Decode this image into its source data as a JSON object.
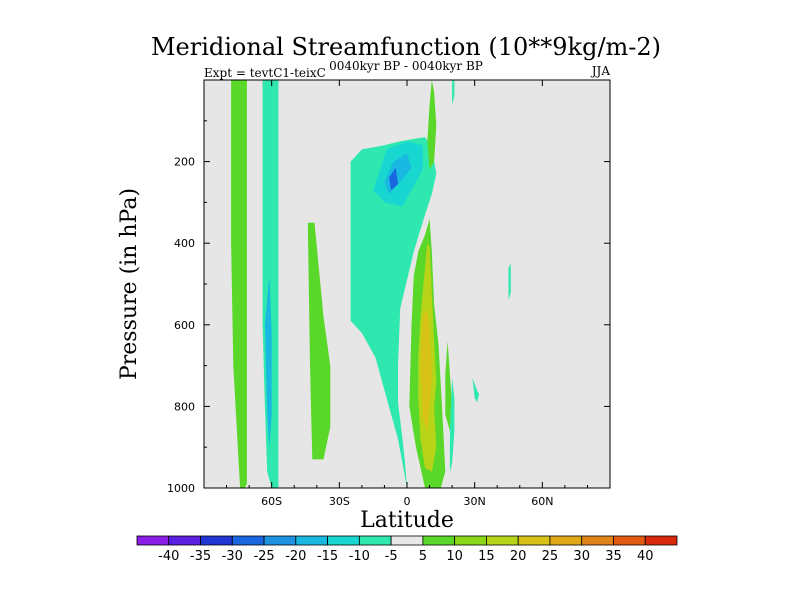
{
  "chart_data": {
    "type": "heatmap",
    "title": "Meridional Streamfunction (10**9kg/m-2)",
    "left_label": "Expt = tevtC1-teixC",
    "center_label": "0040kyr BP - 0040kyr BP",
    "right_label": "JJA",
    "xlabel": "Latitude",
    "ylabel": "Pressure (in hPa)",
    "xlim": [
      -90,
      90
    ],
    "ylim": [
      1000,
      0
    ],
    "x_ticks": [
      {
        "value": -60,
        "label": "60S"
      },
      {
        "value": -30,
        "label": "30S"
      },
      {
        "value": 0,
        "label": "0"
      },
      {
        "value": 30,
        "label": "30N"
      },
      {
        "value": 60,
        "label": "60N"
      }
    ],
    "y_ticks": [
      {
        "value": 200,
        "label": "200"
      },
      {
        "value": 400,
        "label": "400"
      },
      {
        "value": 600,
        "label": "600"
      },
      {
        "value": 800,
        "label": "800"
      },
      {
        "value": 1000,
        "label": "1000"
      }
    ],
    "colorbar": {
      "labels": [
        "-40",
        "-35",
        "-30",
        "-25",
        "-20",
        "-15",
        "-10",
        "-5",
        "5",
        "10",
        "15",
        "20",
        "25",
        "30",
        "35",
        "40"
      ],
      "colors": [
        "#8a1ee6",
        "#5a1fe0",
        "#2236d6",
        "#1a66e0",
        "#1c92e0",
        "#18b8e0",
        "#18d6d0",
        "#2ee8b0",
        "#e8e8e8",
        "#5ad82a",
        "#8cd818",
        "#b8d418",
        "#d8c218",
        "#e0a818",
        "#e08418",
        "#e05a12",
        "#d82a0a"
      ]
    },
    "contours": [
      {
        "level": 10,
        "color": "#5ad82a",
        "points": [
          [
            -78,
            0
          ],
          [
            -71,
            0
          ],
          [
            -71,
            990
          ],
          [
            -72,
            1000
          ],
          [
            -74,
            1000
          ],
          [
            -75,
            900
          ],
          [
            -77,
            700
          ],
          [
            -78,
            400
          ]
        ]
      },
      {
        "level": -10,
        "color": "#2ee8b0",
        "points": [
          [
            -64,
            0
          ],
          [
            -57,
            0
          ],
          [
            -57,
            1000
          ],
          [
            -60,
            1000
          ],
          [
            -62,
            960
          ],
          [
            -63,
            800
          ],
          [
            -64,
            600
          ]
        ]
      },
      {
        "level": -20,
        "color": "#18b8e0",
        "points": [
          [
            -63,
            600
          ],
          [
            -61,
            480
          ],
          [
            -60,
            620
          ],
          [
            -60,
            820
          ],
          [
            -61,
            900
          ],
          [
            -62,
            820
          ]
        ]
      },
      {
        "level": 10,
        "color": "#5ad82a",
        "points": [
          [
            -44,
            350
          ],
          [
            -41,
            350
          ],
          [
            -37,
            580
          ],
          [
            -34,
            700
          ],
          [
            -34,
            850
          ],
          [
            -37,
            930
          ],
          [
            -42,
            930
          ],
          [
            -43,
            700
          ]
        ]
      },
      {
        "level": -5,
        "color": "#2ee8b0",
        "points": [
          [
            -25,
            200
          ],
          [
            -20,
            170
          ],
          [
            -10,
            160
          ],
          [
            -3,
            150
          ],
          [
            8,
            140
          ],
          [
            11,
            165
          ],
          [
            12,
            200
          ],
          [
            13,
            230
          ],
          [
            11,
            280
          ],
          [
            8,
            330
          ],
          [
            3,
            420
          ],
          [
            -3,
            560
          ],
          [
            -4,
            700
          ],
          [
            -4,
            790
          ],
          [
            -2,
            880
          ],
          [
            -1,
            930
          ],
          [
            0,
            1000
          ],
          [
            -4,
            880
          ],
          [
            -7,
            820
          ],
          [
            -14,
            680
          ],
          [
            -20,
            620
          ],
          [
            -25,
            590
          ]
        ]
      },
      {
        "level": -15,
        "color": "#18d6d0",
        "points": [
          [
            -15,
            270
          ],
          [
            -9,
            170
          ],
          [
            0,
            150
          ],
          [
            7,
            160
          ],
          [
            7,
            220
          ],
          [
            2,
            270
          ],
          [
            -2,
            310
          ],
          [
            -10,
            300
          ]
        ]
      },
      {
        "level": -20,
        "color": "#18b8e0",
        "points": [
          [
            -10,
            250
          ],
          [
            -6,
            200
          ],
          [
            0,
            180
          ],
          [
            2,
            215
          ],
          [
            -3,
            250
          ],
          [
            -8,
            280
          ]
        ]
      },
      {
        "level": -25,
        "color": "#1a66e0",
        "points": [
          [
            -8,
            240
          ],
          [
            -5,
            215
          ],
          [
            -4,
            255
          ],
          [
            -7,
            270
          ]
        ]
      },
      {
        "level": 10,
        "color": "#5ad82a",
        "points": [
          [
            5,
            420
          ],
          [
            8,
            380
          ],
          [
            10,
            340
          ],
          [
            11,
            420
          ],
          [
            12,
            550
          ],
          [
            14,
            650
          ],
          [
            15,
            750
          ],
          [
            16,
            850
          ],
          [
            17,
            960
          ],
          [
            15,
            1000
          ],
          [
            8,
            1000
          ],
          [
            4,
            900
          ],
          [
            1,
            800
          ],
          [
            2,
            600
          ],
          [
            3,
            480
          ]
        ]
      },
      {
        "level": 15,
        "color": "#b8d418",
        "points": [
          [
            8,
            460
          ],
          [
            9,
            400
          ],
          [
            10,
            410
          ],
          [
            11,
            520
          ],
          [
            12,
            640
          ],
          [
            13,
            740
          ],
          [
            12,
            800
          ],
          [
            13,
            900
          ],
          [
            11,
            960
          ],
          [
            8,
            950
          ],
          [
            6,
            880
          ],
          [
            5,
            780
          ],
          [
            5,
            680
          ],
          [
            6,
            580
          ]
        ]
      },
      {
        "level": 20,
        "color": "#d8c218",
        "points": [
          [
            7,
            580
          ],
          [
            9,
            560
          ],
          [
            10,
            620
          ],
          [
            11,
            720
          ],
          [
            10,
            800
          ],
          [
            9,
            860
          ],
          [
            7,
            830
          ],
          [
            6,
            700
          ]
        ]
      },
      {
        "level": 10,
        "color": "#5ad82a",
        "points": [
          [
            11,
            0
          ],
          [
            12,
            30
          ],
          [
            13,
            110
          ],
          [
            12,
            200
          ],
          [
            10,
            220
          ],
          [
            9,
            150
          ],
          [
            10,
            60
          ]
        ]
      },
      {
        "level": 10,
        "color": "#5ad82a",
        "points": [
          [
            18,
            640
          ],
          [
            19,
            720
          ],
          [
            20,
            800
          ],
          [
            19,
            860
          ],
          [
            17,
            820
          ],
          [
            17,
            720
          ]
        ]
      },
      {
        "level": -5,
        "color": "#2ee8b0",
        "points": [
          [
            20,
            730
          ],
          [
            21,
            780
          ],
          [
            21,
            860
          ],
          [
            20,
            940
          ],
          [
            19,
            960
          ],
          [
            19,
            860
          ]
        ]
      },
      {
        "level": -5,
        "color": "#2ee8b0",
        "points": [
          [
            20,
            0
          ],
          [
            21,
            0
          ],
          [
            21,
            40
          ],
          [
            20,
            60
          ]
        ]
      },
      {
        "level": -5,
        "color": "#2ee8b0",
        "points": [
          [
            29,
            730
          ],
          [
            31,
            760
          ],
          [
            32,
            770
          ],
          [
            31,
            790
          ],
          [
            30,
            780
          ]
        ]
      },
      {
        "level": -5,
        "color": "#2ee8b0",
        "points": [
          [
            45,
            460
          ],
          [
            46,
            450
          ],
          [
            46,
            520
          ],
          [
            45,
            540
          ]
        ]
      }
    ]
  }
}
